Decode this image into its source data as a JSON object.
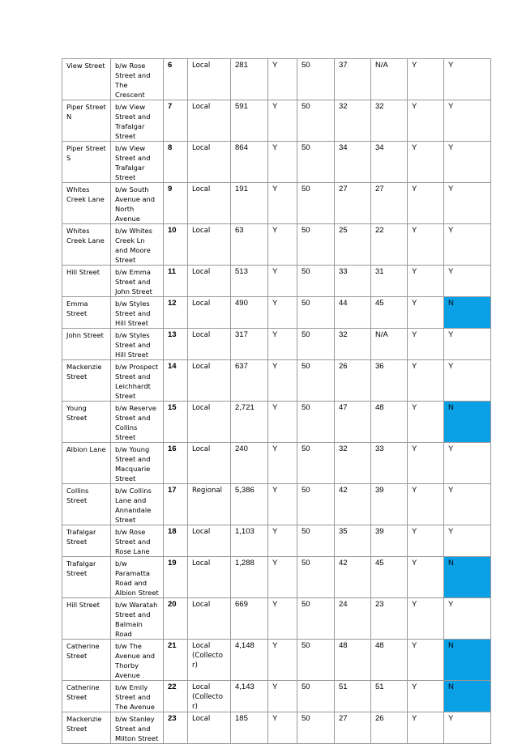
{
  "colors": {
    "highlight": "#0aa0e6",
    "link": "#1a3fcf",
    "border": "#9a9a9a"
  },
  "rows": [
    {
      "street": "View Street",
      "location": "b/w Rose Street and The Crescent",
      "ref": "6",
      "type": "Local",
      "volume": "281",
      "c5": "Y",
      "limit": "50",
      "c7": "37",
      "c8": "N/A",
      "c9": "Y",
      "c10": "Y",
      "c10_highlight": false
    },
    {
      "street": "Piper Street N",
      "location": "b/w View Street and Trafalgar Street",
      "ref": "7",
      "type": "Local",
      "volume": "591",
      "c5": "Y",
      "limit": "50",
      "c7": "32",
      "c8": "32",
      "c9": "Y",
      "c10": "Y",
      "c10_highlight": false
    },
    {
      "street": "Piper Street S",
      "location": "b/w View Street and Trafalgar Street",
      "ref": "8",
      "type": "Local",
      "volume": "864",
      "c5": "Y",
      "limit": "50",
      "c7": "34",
      "c8": "34",
      "c9": "Y",
      "c10": "Y",
      "c10_highlight": false
    },
    {
      "street": "Whites Creek Lane",
      "location": "b/w South Avenue and North Avenue",
      "ref": "9",
      "type": "Local",
      "volume": "191",
      "c5": "Y",
      "limit": "50",
      "c7": "27",
      "c8": "27",
      "c9": "Y",
      "c10": "Y",
      "c10_highlight": false
    },
    {
      "street": "Whites Creek Lane",
      "location": "b/w Whites Creek Ln and Moore Street",
      "ref": "10",
      "type": "Local",
      "volume": "63",
      "c5": "Y",
      "limit": "50",
      "c7": "25",
      "c8": "22",
      "c9": "Y",
      "c10": "Y",
      "c10_highlight": false
    },
    {
      "street": "Hill Street",
      "location": "b/w Emma Street and John Street",
      "ref": "11",
      "type": "Local",
      "volume": "513",
      "c5": "Y",
      "limit": "50",
      "c7": "33",
      "c8": "31",
      "c9": "Y",
      "c10": "Y",
      "c10_highlight": false
    },
    {
      "street": "Emma Street",
      "location": "b/w Styles Street and Hill Street",
      "ref": "12",
      "type": "Local",
      "volume": "490",
      "c5": "Y",
      "limit": "50",
      "c7": "44",
      "c8": "45",
      "c9": "Y",
      "c10": "N",
      "c10_highlight": true
    },
    {
      "street": "John Street",
      "location": "b/w Styles Street and Hill Street",
      "ref": "13",
      "type": "Local",
      "volume": "317",
      "c5": "Y",
      "limit": "50",
      "c7": "32",
      "c8": "N/A",
      "c9": "Y",
      "c10": "Y",
      "c10_highlight": false
    },
    {
      "street": "Mackenzie Street",
      "location": "b/w Prospect Street and Leichhardt Street",
      "ref": "14",
      "type": "Local",
      "volume": "637",
      "c5": "Y",
      "limit": "50",
      "c7": "26",
      "c8": "36",
      "c9": "Y",
      "c10": "Y",
      "c10_highlight": false
    },
    {
      "street": "Young Street",
      "location": "b/w Reserve Street and Collins Street",
      "ref": "15",
      "type": "Local",
      "volume": "2,721",
      "c5": "Y",
      "limit": "50",
      "c7": "47",
      "c8": "48",
      "c9": "Y",
      "c10": "N",
      "c10_highlight": true
    },
    {
      "street": "Albion Lane",
      "location": "b/w Young Street and Macquarie Street",
      "ref": "16",
      "type": "Local",
      "volume": "240",
      "c5": "Y",
      "limit": "50",
      "c7": "32",
      "c8": "33",
      "c9": "Y",
      "c10": "Y",
      "c10_highlight": false
    },
    {
      "street": "Collins Street",
      "location": "b/w Collins Lane and Annandale Street",
      "ref": "17",
      "type": "Regional",
      "volume": "5,386",
      "c5": "Y",
      "limit": "50",
      "c7": "42",
      "c8": "39",
      "c9": "Y",
      "c10": "Y",
      "c10_highlight": false
    },
    {
      "street": "Trafalgar Street",
      "location": "b/w Rose Street and Rose Lane",
      "ref": "18",
      "type": "Local",
      "volume": "1,103",
      "c5": "Y",
      "limit": "50",
      "c7": "35",
      "c8": "39",
      "c9": "Y",
      "c10": "Y",
      "c10_highlight": false
    },
    {
      "street": "Trafalgar Street",
      "location": "b/w Paramatta Road and Albion Street",
      "ref": "19",
      "type": "Local",
      "volume": "1,288",
      "c5": "Y",
      "limit": "50",
      "c7": "42",
      "c8": "45",
      "c9": "Y",
      "c10": "N",
      "c10_highlight": true
    },
    {
      "street": "Hill Street",
      "location": "b/w Waratah Street and Balmain Road",
      "ref": "20",
      "type": "Local",
      "volume": "669",
      "c5": "Y",
      "limit": "50",
      "c7": "24",
      "c8": "23",
      "c9": "Y",
      "c10": "Y",
      "c10_highlight": false
    },
    {
      "street": "Catherine Street",
      "location": "b/w The Avenue and Thorby Avenue",
      "ref": "21",
      "type": "Local (Collecto r)",
      "volume": "4,148",
      "c5": "Y",
      "limit": "50",
      "c7": "48",
      "c8": "48",
      "c9": "Y",
      "c10": "N",
      "c10_highlight": true
    },
    {
      "street": "Catherine Street",
      "location": "b/w Emily Street and The Avenue",
      "ref": "22",
      "type": "Local (Collecto r)",
      "volume": "4,143",
      "c5": "Y",
      "limit": "50",
      "c7": "51",
      "c8": "51",
      "c9": "Y",
      "c10": "N",
      "c10_highlight": true
    },
    {
      "street": "Mackenzie Street",
      "location": "b/w Stanley Street and Milton Street",
      "ref": "23",
      "type": "Local",
      "volume": "185",
      "c5": "Y",
      "limit": "50",
      "c7": "27",
      "c8": "26",
      "c9": "Y",
      "c10": "Y",
      "c10_highlight": false
    }
  ]
}
